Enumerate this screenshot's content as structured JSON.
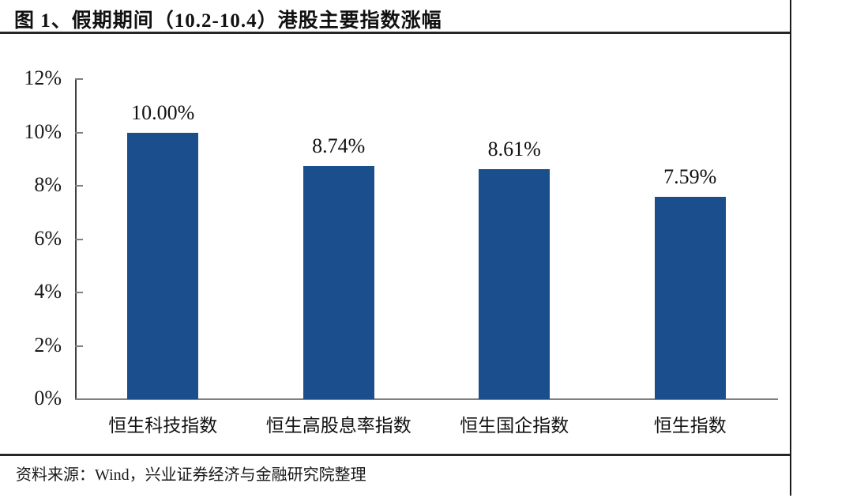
{
  "page": {
    "title": "图 1、假期期间（10.2-10.4）港股主要指数涨幅",
    "source_note": "资料来源：Wind，兴业证券经济与金融研究院整理"
  },
  "colors": {
    "bar": "#1B4E8C",
    "y_axis": "#3F3F3F",
    "x_axis": "#808080",
    "tick": "#7F7F7F",
    "rule": "#262626",
    "border": "#1A1A1A"
  },
  "chart_data": {
    "type": "bar",
    "title": "假期期间（10.2-10.4）港股主要指数涨幅",
    "categories": [
      "恒生科技指数",
      "恒生高股息率指数",
      "恒生国企指数",
      "恒生指数"
    ],
    "values": [
      10.0,
      8.74,
      8.61,
      7.59
    ],
    "value_labels": [
      "10.00%",
      "8.74%",
      "8.61%",
      "7.59%"
    ],
    "y_tick_values": [
      0,
      2,
      4,
      6,
      8,
      10,
      12
    ],
    "y_tick_labels": [
      "0%",
      "2%",
      "4%",
      "6%",
      "8%",
      "10%",
      "12%"
    ],
    "ylim": [
      0,
      12
    ],
    "xlabel": "",
    "ylabel": "",
    "grid": false,
    "legend": false
  }
}
